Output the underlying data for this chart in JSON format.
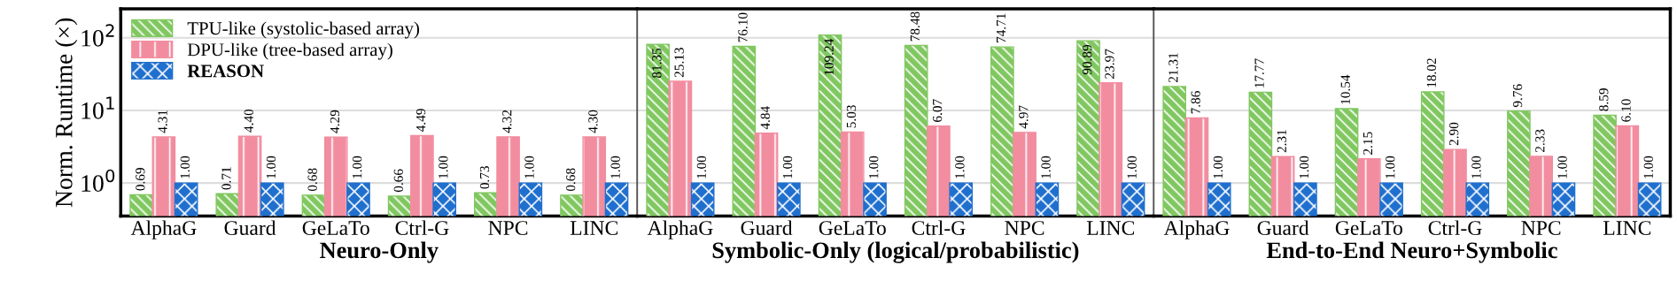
{
  "chart_data": [
    {
      "type": "bar",
      "xlabel": "Neuro-Only",
      "ylabel": "Norm. Runtime (×)",
      "categories": [
        "AlphaG",
        "Guard",
        "GeLaTo",
        "Ctrl-G",
        "NPC",
        "LINC"
      ],
      "log": true,
      "ylim": [
        0.35,
        250
      ],
      "yticks": [
        {
          "value": 1,
          "label": "10$^{0}$"
        },
        {
          "value": 10,
          "label": "10$^{1}$"
        },
        {
          "value": 100,
          "label": "10$^{2}$"
        }
      ],
      "grid": "y",
      "legend": "top left",
      "series": [
        {
          "name": "TPU-like (systolic-based array)",
          "color": "#80c760",
          "values": [
            0.69,
            0.71,
            0.68,
            0.66,
            0.73,
            0.68
          ],
          "value_labels": [
            "0.69",
            "0.71",
            "0.68",
            "0.66",
            "0.73",
            "0.68"
          ]
        },
        {
          "name": "DPU-like (tree-based array)",
          "color": "#f28da0",
          "values": [
            4.31,
            4.4,
            4.29,
            4.49,
            4.32,
            4.3
          ],
          "value_labels": [
            "4.31",
            "4.40",
            "4.29",
            "4.49",
            "4.32",
            "4.30"
          ]
        },
        {
          "name": "REASON",
          "color": "#1f6fce",
          "values": [
            1.0,
            1.0,
            1.0,
            1.0,
            1.0,
            1.0
          ],
          "value_labels": [
            "1.00",
            "1.00",
            "1.00",
            "1.00",
            "1.00",
            "1.00"
          ]
        }
      ]
    },
    {
      "type": "bar",
      "xlabel": "Symbolic-Only (logical/probabilistic)",
      "categories": [
        "AlphaG",
        "Guard",
        "GeLaTo",
        "Ctrl-G",
        "NPC",
        "LINC"
      ],
      "log": true,
      "ylim": [
        0.35,
        250
      ],
      "yticks": [
        {
          "value": 1,
          "label": null
        },
        {
          "value": 10,
          "label": null
        },
        {
          "value": 100,
          "label": null
        }
      ],
      "grid": "y",
      "tick_labels": "x",
      "series": [
        {
          "color": "#80c760",
          "values": [
            81.35,
            76.1,
            109.24,
            78.48,
            74.71,
            90.89
          ],
          "value_labels": [
            "81.35",
            "76.10",
            "109.24",
            "78.48",
            "74.71",
            "90.89"
          ]
        },
        {
          "color": "#f28da0",
          "values": [
            25.13,
            4.84,
            5.03,
            6.07,
            4.97,
            23.97
          ],
          "value_labels": [
            "25.13",
            "4.84",
            "5.03",
            "6.07",
            "4.97",
            "23.97"
          ]
        },
        {
          "color": "#1f6fce",
          "values": [
            1.0,
            1.0,
            1.0,
            1.0,
            1.0,
            1.0
          ],
          "value_labels": [
            "1.00",
            "1.00",
            "1.00",
            "1.00",
            "1.00",
            "1.00"
          ]
        }
      ]
    },
    {
      "type": "bar",
      "xlabel": "End-to-End Neuro+Symbolic",
      "categories": [
        "AlphaG",
        "Guard",
        "GeLaTo",
        "Ctrl-G",
        "NPC",
        "LINC"
      ],
      "log": true,
      "ylim": [
        0.35,
        250
      ],
      "yticks": [
        {
          "value": 1,
          "label": null
        },
        {
          "value": 10,
          "label": null
        },
        {
          "value": 100,
          "label": null
        }
      ],
      "grid": "y",
      "tick_labels": "x",
      "series": [
        {
          "color": "#80c760",
          "values": [
            21.31,
            17.77,
            10.54,
            18.02,
            9.76,
            8.59
          ],
          "value_labels": [
            "21.31",
            "17.77",
            "10.54",
            "18.02",
            "9.76",
            "8.59"
          ]
        },
        {
          "color": "#f28da0",
          "values": [
            7.86,
            2.31,
            2.15,
            2.9,
            2.33,
            6.1
          ],
          "value_labels": [
            "7.86",
            "2.31",
            "2.15",
            "2.90",
            "2.33",
            "6.10"
          ]
        },
        {
          "color": "#1f6fce",
          "values": [
            1.0,
            1.0,
            1.0,
            1.0,
            1.0,
            1.0
          ],
          "value_labels": [
            "1.00",
            "1.00",
            "1.00",
            "1.00",
            "1.00",
            "1.00"
          ]
        }
      ]
    }
  ]
}
